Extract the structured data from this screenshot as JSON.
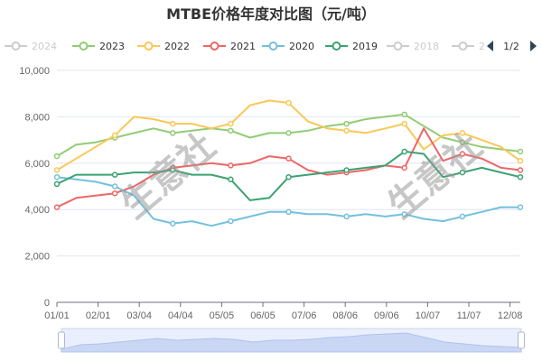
{
  "chart_data": {
    "type": "line",
    "title": "MTBE价格年度对比图（元/吨）",
    "x": [
      "01/01",
      "01/15",
      "02/01",
      "02/15",
      "03/01",
      "03/15",
      "04/01",
      "04/15",
      "05/01",
      "05/15",
      "06/01",
      "06/15",
      "07/01",
      "07/15",
      "08/01",
      "08/15",
      "09/01",
      "09/15",
      "10/01",
      "10/15",
      "11/01",
      "11/15",
      "12/01",
      "12/15",
      "12/31"
    ],
    "x_ticks": [
      "01/01",
      "02/01",
      "03/04",
      "04/04",
      "05/05",
      "06/05",
      "07/06",
      "08/06",
      "09/06",
      "10/07",
      "11/07",
      "12/08"
    ],
    "y_ticks": [
      "0",
      "2,000",
      "4,000",
      "6,000",
      "8,000",
      "10,000"
    ],
    "ylim": [
      0,
      10000
    ],
    "legend_pager": {
      "page": "1/2"
    },
    "legend": [
      {
        "name": "2024",
        "color": "#cccccc",
        "active": false
      },
      {
        "name": "2023",
        "color": "#91cc75",
        "active": true
      },
      {
        "name": "2022",
        "color": "#fac858",
        "active": true
      },
      {
        "name": "2021",
        "color": "#ee6666",
        "active": true
      },
      {
        "name": "2020",
        "color": "#73c0de",
        "active": true
      },
      {
        "name": "2019",
        "color": "#3ba272",
        "active": true
      },
      {
        "name": "2018",
        "color": "#cccccc",
        "active": false
      },
      {
        "name": "2",
        "color": "#cccccc",
        "active": false
      }
    ],
    "series": [
      {
        "name": "2023",
        "color": "#91cc75",
        "values": [
          6300,
          6800,
          6900,
          7100,
          7300,
          7500,
          7300,
          7400,
          7500,
          7400,
          7100,
          7300,
          7300,
          7400,
          7600,
          7700,
          7900,
          8000,
          8100,
          7600,
          7100,
          6900,
          6700,
          6600,
          6500
        ]
      },
      {
        "name": "2022",
        "color": "#fac858",
        "values": [
          5700,
          6200,
          6700,
          7200,
          8000,
          7900,
          7700,
          7700,
          7500,
          7700,
          8500,
          8700,
          8600,
          7800,
          7500,
          7400,
          7300,
          7500,
          7700,
          6600,
          7200,
          7300,
          7000,
          6700,
          6100
        ]
      },
      {
        "name": "2021",
        "color": "#ee6666",
        "values": [
          4100,
          4500,
          4600,
          4700,
          5000,
          5500,
          5800,
          5900,
          6000,
          5900,
          6000,
          6300,
          6200,
          5700,
          5500,
          5600,
          5700,
          5900,
          5800,
          7500,
          6100,
          6400,
          6200,
          5800,
          5700
        ]
      },
      {
        "name": "2020",
        "color": "#73c0de",
        "values": [
          5400,
          5300,
          5200,
          5000,
          4600,
          3600,
          3400,
          3500,
          3300,
          3500,
          3700,
          3900,
          3900,
          3800,
          3800,
          3700,
          3800,
          3700,
          3800,
          3600,
          3500,
          3700,
          3900,
          4100,
          4100
        ]
      },
      {
        "name": "2019",
        "color": "#3ba272",
        "values": [
          5100,
          5500,
          5500,
          5500,
          5600,
          5600,
          5700,
          5500,
          5500,
          5300,
          4400,
          4500,
          5400,
          5500,
          5600,
          5700,
          5800,
          5900,
          6500,
          6400,
          5400,
          5600,
          5800,
          5600,
          5400
        ]
      }
    ],
    "watermark": "生意社"
  }
}
